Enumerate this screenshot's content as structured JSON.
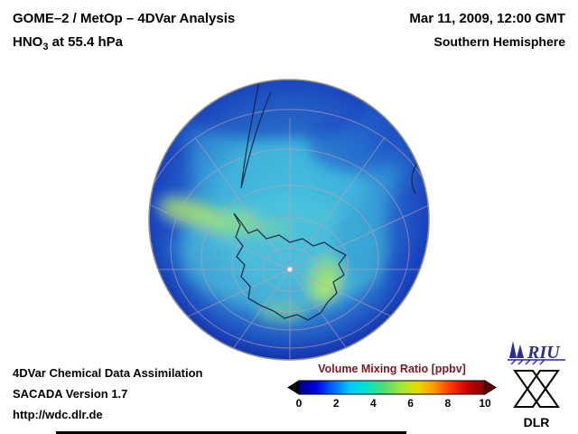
{
  "header": {
    "title": "GOME–2 / MetOp – 4DVar Analysis",
    "subtitle_prefix": "HNO",
    "subtitle_sub": "3",
    "subtitle_suffix": " at 55.4 hPa",
    "datetime": "Mar 11, 2009, 12:00 GMT",
    "hemisphere": "Southern Hemisphere"
  },
  "footer": {
    "line1": "4DVar Chemical Data Assimilation",
    "line2": "SACADA Version 1.7",
    "line3": "http://wdc.dlr.de"
  },
  "colorbar": {
    "title": "Volume Mixing Ratio [ppbv]",
    "ticks": [
      "0",
      "2",
      "4",
      "6",
      "8",
      "10"
    ],
    "min": 0,
    "max": 10,
    "colors": [
      "#000080",
      "#0000e6",
      "#0064ff",
      "#00c8ff",
      "#00e6c8",
      "#50dc78",
      "#a0e63c",
      "#e6dc00",
      "#ff9600",
      "#ff3200",
      "#c80000",
      "#800000"
    ],
    "underflow_color": "#05050f",
    "overflow_color": "#5e0000",
    "title_color": "#7d1820"
  },
  "logos": {
    "riu": "RIU",
    "dlr": "DLR",
    "riu_blue": "#2a2f8f"
  },
  "chart_data": {
    "type": "heatmap",
    "title": "HNO3 volume mixing ratio at 55.4 hPa",
    "projection": "Southern Hemisphere polar globe view",
    "units": "ppbv",
    "colorbar_label": "Volume Mixing Ratio [ppbv]",
    "scale_min": 0,
    "scale_max": 10,
    "scale_ticks": [
      0,
      2,
      4,
      6,
      8,
      10
    ],
    "features": [
      {
        "region": "outer rim / mid-latitudes (dark blue)",
        "approx_value_ppbv": 1
      },
      {
        "region": "subpolar ocean ring (blue-cyan)",
        "approx_value_ppbv": 3
      },
      {
        "region": "collar band west of Antarctica (yellow-green)",
        "approx_value_ppbv": 5
      },
      {
        "region": "enhanced patch east of Antarctica (green)",
        "approx_value_ppbv": 5
      },
      {
        "region": "Antarctic interior (cyan)",
        "approx_value_ppbv": 3.5
      }
    ],
    "overlays": [
      "graticule",
      "coastlines",
      "south-pole marker"
    ]
  }
}
